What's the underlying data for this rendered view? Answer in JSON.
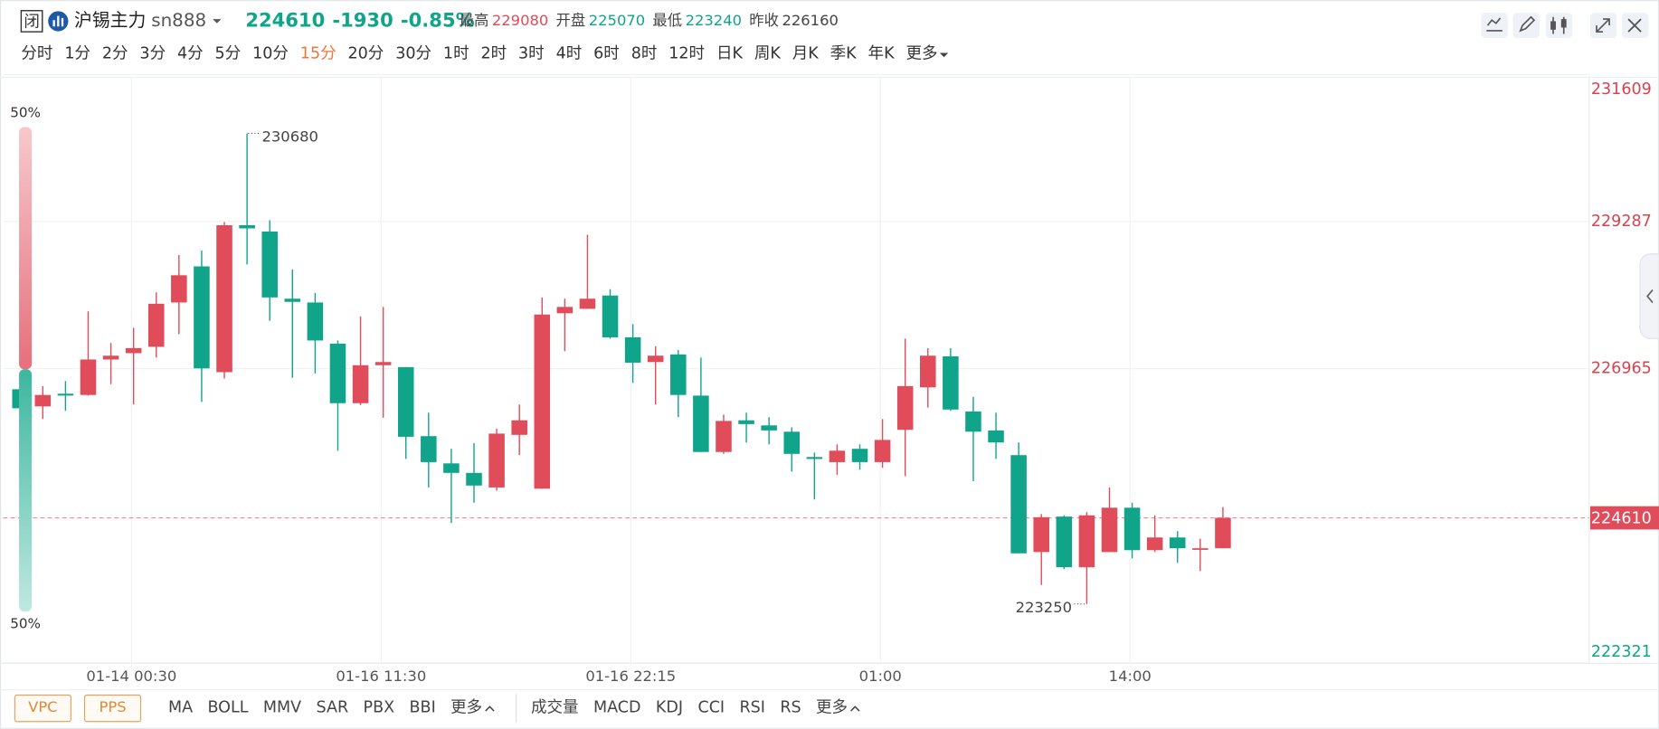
{
  "header": {
    "status_icon": "闭",
    "name": "沪锡主力",
    "code": "sn888",
    "price": "224610",
    "change": "-1930",
    "change_pct": "-0.85%",
    "stats": [
      {
        "label": "最高",
        "value": "229080",
        "color": "#e04c5a"
      },
      {
        "label": "开盘",
        "value": "225070",
        "color": "#10a58a"
      },
      {
        "label": "最低",
        "value": "223240",
        "color": "#10a58a"
      },
      {
        "label": "昨收",
        "value": "226160",
        "color": "#444444"
      }
    ]
  },
  "periods": [
    "分时",
    "1分",
    "2分",
    "3分",
    "4分",
    "5分",
    "10分",
    "15分",
    "20分",
    "30分",
    "1时",
    "2时",
    "3时",
    "4时",
    "6时",
    "8时",
    "12时",
    "日K",
    "周K",
    "月K",
    "季K",
    "年K",
    "更多"
  ],
  "active_period": "15分",
  "indicators": {
    "main": [
      "VPC",
      "PPS"
    ],
    "overlays": [
      "MA",
      "BOLL",
      "MMV",
      "SAR",
      "PBX",
      "BBI",
      "更多"
    ],
    "sub": [
      "成交量",
      "MACD",
      "KDJ",
      "CCI",
      "RSI",
      "RS",
      "更多"
    ]
  },
  "sentiment": {
    "values": [
      50,
      50
    ],
    "value_labels": [
      "50%",
      "50%"
    ]
  },
  "chart_data": {
    "type": "candlestick",
    "categories": [
      null,
      null,
      null,
      null,
      null,
      "01-14 00:30",
      null,
      null,
      null,
      null,
      null,
      null,
      null,
      null,
      null,
      null,
      "01-16 11:30",
      null,
      null,
      null,
      null,
      null,
      null,
      null,
      null,
      null,
      null,
      "01-16 22:15",
      null,
      null,
      null,
      null,
      null,
      null,
      null,
      null,
      null,
      null,
      "01:00",
      null,
      null,
      null,
      null,
      null,
      null,
      null,
      null,
      null,
      null,
      "14:00",
      null,
      null,
      null,
      null
    ],
    "open": [
      226640,
      226370,
      226570,
      226550,
      227110,
      227210,
      227310,
      228010,
      228580,
      226910,
      229230,
      229130,
      228070,
      228010,
      227360,
      226420,
      227020,
      226990,
      225900,
      225470,
      225320,
      225090,
      225920,
      225070,
      227840,
      227910,
      228120,
      227460,
      227070,
      227190,
      226540,
      225650,
      226150,
      226070,
      225970,
      225570,
      225490,
      225700,
      225490,
      226000,
      226670,
      227160,
      226290,
      225990,
      225600,
      224070,
      224630,
      223830,
      224070,
      224770,
      224100,
      224300,
      224120,
      224130
    ],
    "high": [
      226910,
      226690,
      226770,
      227870,
      227370,
      227610,
      228170,
      228760,
      228830,
      229280,
      230680,
      229310,
      228530,
      228160,
      227410,
      227790,
      227940,
      226990,
      226270,
      225700,
      225790,
      226020,
      226400,
      228090,
      228070,
      229080,
      228220,
      227670,
      227320,
      227260,
      227140,
      226240,
      226270,
      226200,
      226040,
      225640,
      225770,
      225770,
      226170,
      227440,
      227290,
      227290,
      226520,
      226270,
      225800,
      224670,
      224650,
      224700,
      225090,
      224850,
      224650,
      224400,
      224280,
      224780
    ],
    "low": [
      225800,
      226170,
      226300,
      226540,
      226720,
      226400,
      227140,
      227510,
      226440,
      226810,
      228610,
      227720,
      226820,
      226890,
      225670,
      226390,
      226190,
      225540,
      225090,
      224530,
      224850,
      225040,
      225600,
      225070,
      227240,
      227910,
      227440,
      226740,
      226400,
      226200,
      225650,
      225620,
      225800,
      225770,
      225340,
      224900,
      225290,
      225370,
      225400,
      225270,
      226350,
      226300,
      225190,
      225540,
      224050,
      223550,
      223800,
      223250,
      224070,
      223970,
      224070,
      223900,
      223770,
      224130
    ],
    "close": [
      226340,
      226550,
      226540,
      227110,
      227170,
      227290,
      227990,
      228440,
      226970,
      229230,
      229180,
      228090,
      228020,
      227410,
      226420,
      227020,
      227070,
      225890,
      225490,
      225320,
      225120,
      225940,
      226150,
      227820,
      227940,
      228070,
      227460,
      227060,
      227170,
      226550,
      225650,
      226140,
      226090,
      225990,
      225620,
      225540,
      225670,
      225490,
      225840,
      226690,
      227170,
      226320,
      225970,
      225800,
      224050,
      224620,
      223830,
      224650,
      224770,
      224100,
      224300,
      224130,
      224130,
      224610
    ],
    "ylim": [
      222321,
      231609
    ],
    "yticks": [
      222321,
      226965,
      229287,
      231609
    ],
    "grid": true,
    "up_color": "#e04c5a",
    "down_color": "#10a58a"
  }
}
